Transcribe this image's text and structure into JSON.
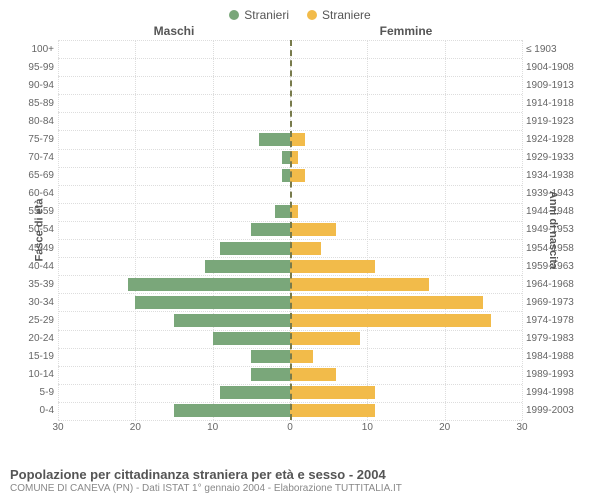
{
  "legend": {
    "male": {
      "label": "Stranieri",
      "color": "#7aa77a"
    },
    "female": {
      "label": "Straniere",
      "color": "#f2bb4a"
    }
  },
  "headers": {
    "left": "Maschi",
    "right": "Femmine"
  },
  "axes": {
    "y_left_label": "Fasce di età",
    "y_right_label": "Anni di nascita",
    "x_max": 30,
    "x_ticks": [
      30,
      20,
      10,
      0,
      10,
      20,
      30
    ],
    "grid_color": "#dddddd"
  },
  "style": {
    "bar_male_color": "#7aa77a",
    "bar_female_color": "#f2bb4a",
    "zero_line_color": "#787b4c",
    "background": "#ffffff",
    "tick_font_size": 10,
    "header_font_size": 12
  },
  "rows": [
    {
      "age": "100+",
      "birth": "≤ 1903",
      "m": 0,
      "f": 0
    },
    {
      "age": "95-99",
      "birth": "1904-1908",
      "m": 0,
      "f": 0
    },
    {
      "age": "90-94",
      "birth": "1909-1913",
      "m": 0,
      "f": 0
    },
    {
      "age": "85-89",
      "birth": "1914-1918",
      "m": 0,
      "f": 0
    },
    {
      "age": "80-84",
      "birth": "1919-1923",
      "m": 0,
      "f": 0
    },
    {
      "age": "75-79",
      "birth": "1924-1928",
      "m": 4,
      "f": 2
    },
    {
      "age": "70-74",
      "birth": "1929-1933",
      "m": 1,
      "f": 1
    },
    {
      "age": "65-69",
      "birth": "1934-1938",
      "m": 1,
      "f": 2
    },
    {
      "age": "60-64",
      "birth": "1939-1943",
      "m": 0,
      "f": 0
    },
    {
      "age": "55-59",
      "birth": "1944-1948",
      "m": 2,
      "f": 1
    },
    {
      "age": "50-54",
      "birth": "1949-1953",
      "m": 5,
      "f": 6
    },
    {
      "age": "45-49",
      "birth": "1954-1958",
      "m": 9,
      "f": 4
    },
    {
      "age": "40-44",
      "birth": "1959-1963",
      "m": 11,
      "f": 11
    },
    {
      "age": "35-39",
      "birth": "1964-1968",
      "m": 21,
      "f": 18
    },
    {
      "age": "30-34",
      "birth": "1969-1973",
      "m": 20,
      "f": 25
    },
    {
      "age": "25-29",
      "birth": "1974-1978",
      "m": 15,
      "f": 26
    },
    {
      "age": "20-24",
      "birth": "1979-1983",
      "m": 10,
      "f": 9
    },
    {
      "age": "15-19",
      "birth": "1984-1988",
      "m": 5,
      "f": 3
    },
    {
      "age": "10-14",
      "birth": "1989-1993",
      "m": 5,
      "f": 6
    },
    {
      "age": "5-9",
      "birth": "1994-1998",
      "m": 9,
      "f": 11
    },
    {
      "age": "0-4",
      "birth": "1999-2003",
      "m": 15,
      "f": 11
    }
  ],
  "footer": {
    "title": "Popolazione per cittadinanza straniera per età e sesso - 2004",
    "subtitle": "COMUNE DI CANEVA (PN) - Dati ISTAT 1° gennaio 2004 - Elaborazione TUTTITALIA.IT"
  }
}
